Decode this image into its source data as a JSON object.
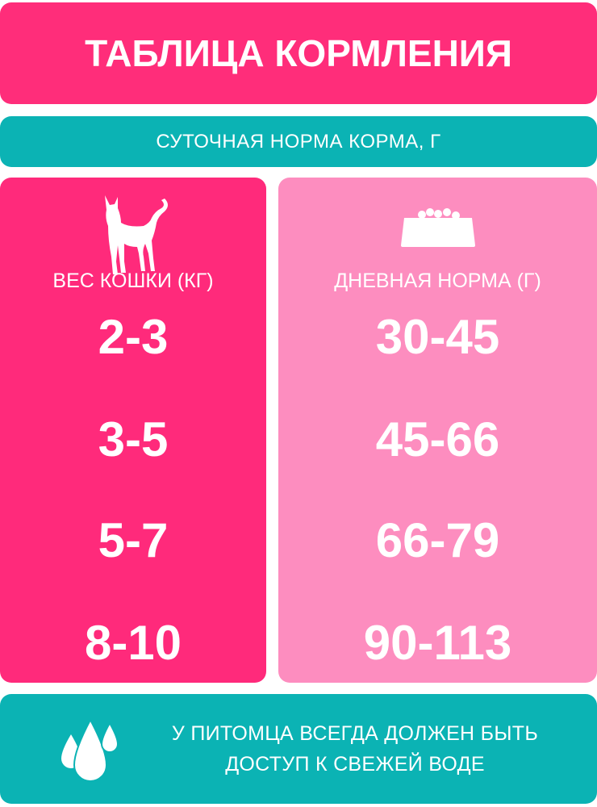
{
  "title": "ТАБЛИЦА КОРМЛЕНИЯ",
  "subtitle": "СУТОЧНАЯ НОРМА КОРМА, Г",
  "colors": {
    "pink": "#ff2d7a",
    "light_pink": "#fd8dbf",
    "teal": "#0bb3b4"
  },
  "table": {
    "left": {
      "icon": "cat-icon",
      "header": "ВЕС КОШКИ (КГ)",
      "values": [
        "2-3",
        "3-5",
        "5-7",
        "8-10"
      ]
    },
    "right": {
      "icon": "food-bowl-icon",
      "header": "ДНЕВНАЯ НОРМА (Г)",
      "values": [
        "30-45",
        "45-66",
        "66-79",
        "90-113"
      ]
    }
  },
  "note": {
    "icon": "water-drops-icon",
    "line1": "У ПИТОМЦА ВСЕГДА ДОЛЖЕН БЫТЬ",
    "line2": "ДОСТУП К СВЕЖЕЙ ВОДЕ"
  }
}
